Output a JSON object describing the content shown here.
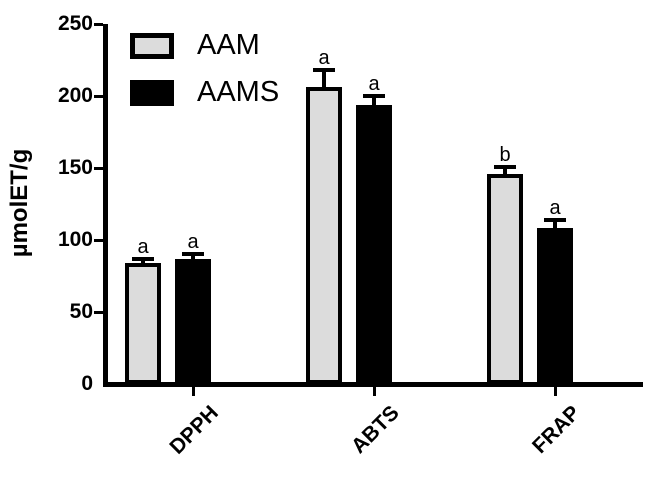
{
  "chart_data": {
    "type": "bar",
    "title": "",
    "xlabel": "",
    "ylabel": "µmolET/g",
    "categories": [
      "DPPH",
      "ABTS",
      "FRAP"
    ],
    "series": [
      {
        "name": "AAM",
        "color": "#dcdcdc",
        "values": [
          84,
          206,
          146
        ],
        "errors": [
          3,
          12,
          5
        ],
        "letters": [
          "a",
          "a",
          "b"
        ]
      },
      {
        "name": "AAMS",
        "color": "#000000",
        "values": [
          87,
          194,
          108
        ],
        "errors": [
          3,
          6,
          6
        ],
        "letters": [
          "a",
          "a",
          "a"
        ]
      }
    ],
    "ylim": [
      0,
      250
    ],
    "yticks": [
      0,
      50,
      100,
      150,
      200,
      250
    ],
    "grid": false,
    "legend_position": "top-left-inside",
    "error_bar_style": "upper-only-with-cap",
    "bar_fill_outline": "#000000"
  }
}
